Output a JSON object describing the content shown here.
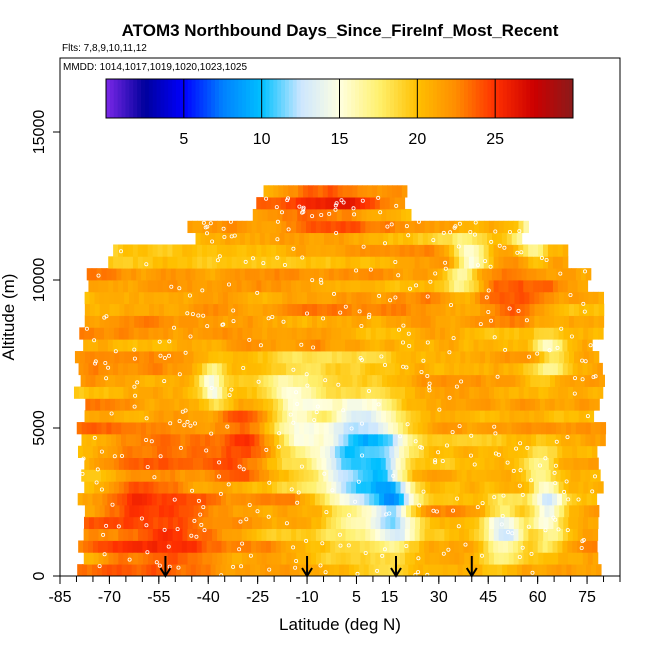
{
  "chart_data": {
    "type": "heatmap",
    "title": "ATOM3 Northbound Days_Since_FireInf_Most_Recent",
    "subtitle": "Flts: 7,8,9,10,11,12",
    "annotation": "MMDD: 1014,1017,1019,1020,1023,1025",
    "xlabel": "Latitude (deg N)",
    "ylabel": "Altitude (m)",
    "xlim": [
      -85,
      85
    ],
    "ylim": [
      0,
      17500
    ],
    "x_ticks": [
      -85,
      -70,
      -55,
      -40,
      -25,
      -10,
      5,
      15,
      30,
      45,
      60,
      75
    ],
    "x_tick_labels": [
      "-85",
      "-70",
      "-55",
      "-40",
      "-25",
      "-10",
      "5",
      "15",
      "30",
      "45",
      "60",
      "75"
    ],
    "y_ticks": [
      0,
      5000,
      10000,
      15000
    ],
    "y_tick_labels": [
      "0",
      "5000",
      "10000",
      "15000"
    ],
    "colorbar": {
      "range": [
        0,
        30
      ],
      "ticks": [
        5,
        10,
        15,
        20,
        25
      ],
      "tick_labels": [
        "5",
        "10",
        "15",
        "20",
        "25"
      ],
      "colors": [
        "#7b28e8",
        "#00009c",
        "#0000ff",
        "#0080ff",
        "#00c0ff",
        "#cce6ff",
        "#ffffe0",
        "#fff170",
        "#ffc000",
        "#ff8c00",
        "#ff3000",
        "#cc0000",
        "#8b1a1a"
      ]
    },
    "arrows_latitude": [
      -53,
      -10,
      17,
      40
    ],
    "grid": false,
    "legend_position": "top"
  }
}
